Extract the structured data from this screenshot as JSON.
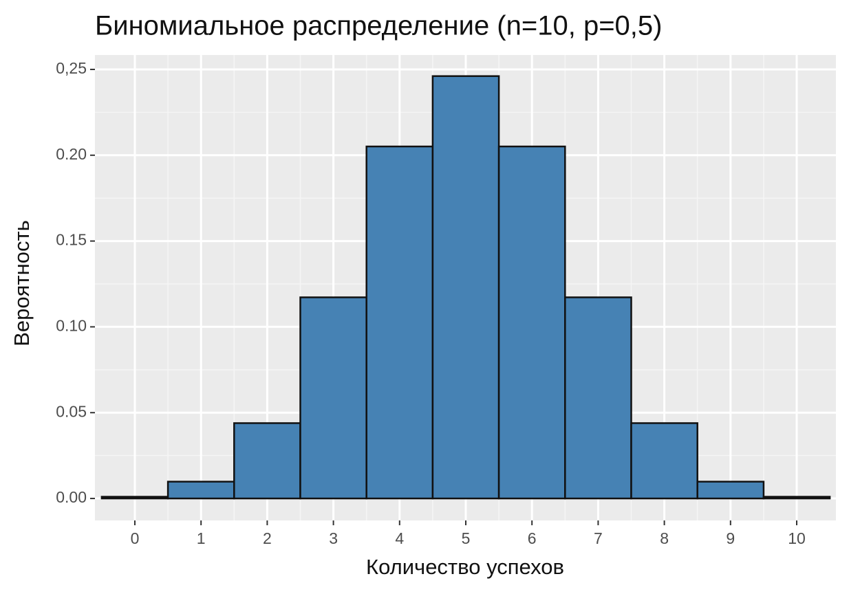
{
  "chart_data": {
    "type": "bar",
    "title": "Биномиальное распределение (n=10, p=0,5)",
    "x_label": "Количество успехов",
    "y_label": "Вероятность",
    "categories": [
      "0",
      "1",
      "2",
      "3",
      "4",
      "5",
      "6",
      "7",
      "8",
      "9",
      "10"
    ],
    "values": [
      0.001,
      0.0098,
      0.0439,
      0.1172,
      0.2051,
      0.2461,
      0.2051,
      0.1172,
      0.0439,
      0.0098,
      0.001
    ],
    "color": "#4682b4",
    "ylim": [
      -0.0128,
      0.2584
    ],
    "yticks": [
      {
        "value": 0,
        "label": "0.00"
      },
      {
        "value": 0.05,
        "label": "0.05"
      },
      {
        "value": 0.1,
        "label": "0.10"
      },
      {
        "value": 0.15,
        "label": "0.15"
      },
      {
        "value": 0.2,
        "label": "0.20"
      },
      {
        "value": 0.25,
        "label": "0,25"
      }
    ],
    "grid": true
  }
}
